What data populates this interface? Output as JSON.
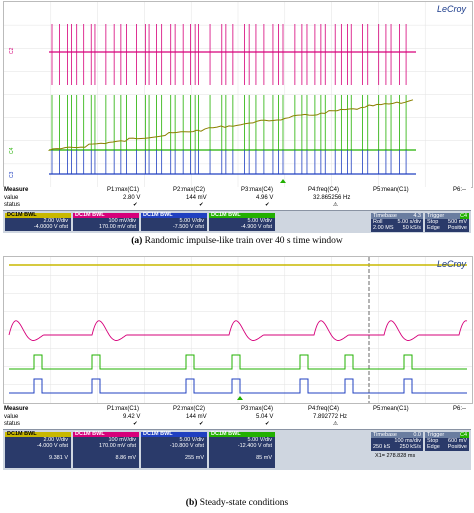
{
  "top": {
    "brand": "LeCroy",
    "trace_labels": [
      "C1",
      "C2",
      "C3",
      "C4"
    ],
    "measure": {
      "header": [
        "Measure",
        "P1:max(C1)",
        "P2:max(C2)",
        "P3:max(C4)",
        "P4:freq(C4)",
        "P5:mean(C1)",
        "P6:--"
      ],
      "value": [
        "value",
        "2.80 V",
        "144 mV",
        "4.96 V",
        "32.865256 Hz",
        "",
        ""
      ],
      "status": [
        "status",
        "✔",
        "✔",
        "✔",
        "⚠",
        "",
        ""
      ]
    },
    "channels": [
      {
        "name": "C1",
        "hdr": "DC1M BWL",
        "color": "#c8b800",
        "vdiv": "2.00 V/div",
        "offset": "-4.0000 V ofst"
      },
      {
        "name": "C2",
        "hdr": "DC1M BWL",
        "color": "#d6007a",
        "vdiv": "100 mV/div",
        "offset": "170.00 mV ofst"
      },
      {
        "name": "C3",
        "hdr": "DC1M BWL",
        "color": "#2040c0",
        "vdiv": "5.00 V/div",
        "offset": "-7.500 V ofst"
      },
      {
        "name": "C4",
        "hdr": "DC1M BWL",
        "color": "#22b000",
        "vdiv": "5.00 V/div",
        "offset": "-4.900 V ofst"
      }
    ],
    "timebase": {
      "label": "Timebase",
      "pos": "4.3",
      "roll": "Roll",
      "tdiv": "5.00 s/div",
      "samples": "2.00 MS",
      "rate": "50 kS/s"
    },
    "trigger": {
      "label": "Trigger",
      "ch": "C4",
      "mode": "Stop",
      "level": "500 mV",
      "type": "Edge",
      "slope": "Positive"
    },
    "caption_letter": "(a)",
    "caption_text": "Randomic impulse-like train over 40 s time window"
  },
  "bottom": {
    "brand": "LeCroy",
    "measure": {
      "header": [
        "Measure",
        "P1:max(C1)",
        "P2:max(C2)",
        "P3:max(C4)",
        "P4:freq(C4)",
        "P5:mean(C1)",
        "P6:--"
      ],
      "value": [
        "value",
        "9.42 V",
        "144 mV",
        "5.04 V",
        "7.892772 Hz",
        "",
        ""
      ],
      "status": [
        "status",
        "✔",
        "✔",
        "✔",
        "⚠",
        "",
        ""
      ]
    },
    "channels": [
      {
        "name": "C1",
        "hdr": "DC1M BWL",
        "color": "#c8b800",
        "vdiv": "2.00 V/div",
        "offset": "-4.000 V ofst",
        "cursor": "9.381 V"
      },
      {
        "name": "C2",
        "hdr": "DC1M BWL",
        "color": "#d6007a",
        "vdiv": "100 mV/div",
        "offset": "170.00 mV ofst",
        "cursor": "8.86 mV"
      },
      {
        "name": "C3",
        "hdr": "DC1M BWL",
        "color": "#2040c0",
        "vdiv": "5.00 V/div",
        "offset": "-10.800 V ofst",
        "cursor": "255 mV"
      },
      {
        "name": "C4",
        "hdr": "DC1M BWL",
        "color": "#22b000",
        "vdiv": "5.00 V/div",
        "offset": "-12.400 V ofst",
        "cursor": "85 mV"
      }
    ],
    "timebase": {
      "label": "Timebase",
      "pos": "0.0",
      "tdiv": "100 ms/div",
      "samples": "250 kS",
      "rate": "250 kS/s"
    },
    "trigger": {
      "label": "Trigger",
      "ch": "C4",
      "mode": "Stop",
      "level": "600 mV",
      "type": "Edge",
      "slope": "Positive"
    },
    "cursor_readout": "X1= 278.828 ms",
    "caption_letter": "(b)",
    "caption_text": "Steady-state conditions"
  },
  "colors": {
    "c1": "#c8b800",
    "c2": "#d6007a",
    "c3": "#2040c0",
    "c4": "#22b000",
    "panel": "#2a3a6a"
  }
}
